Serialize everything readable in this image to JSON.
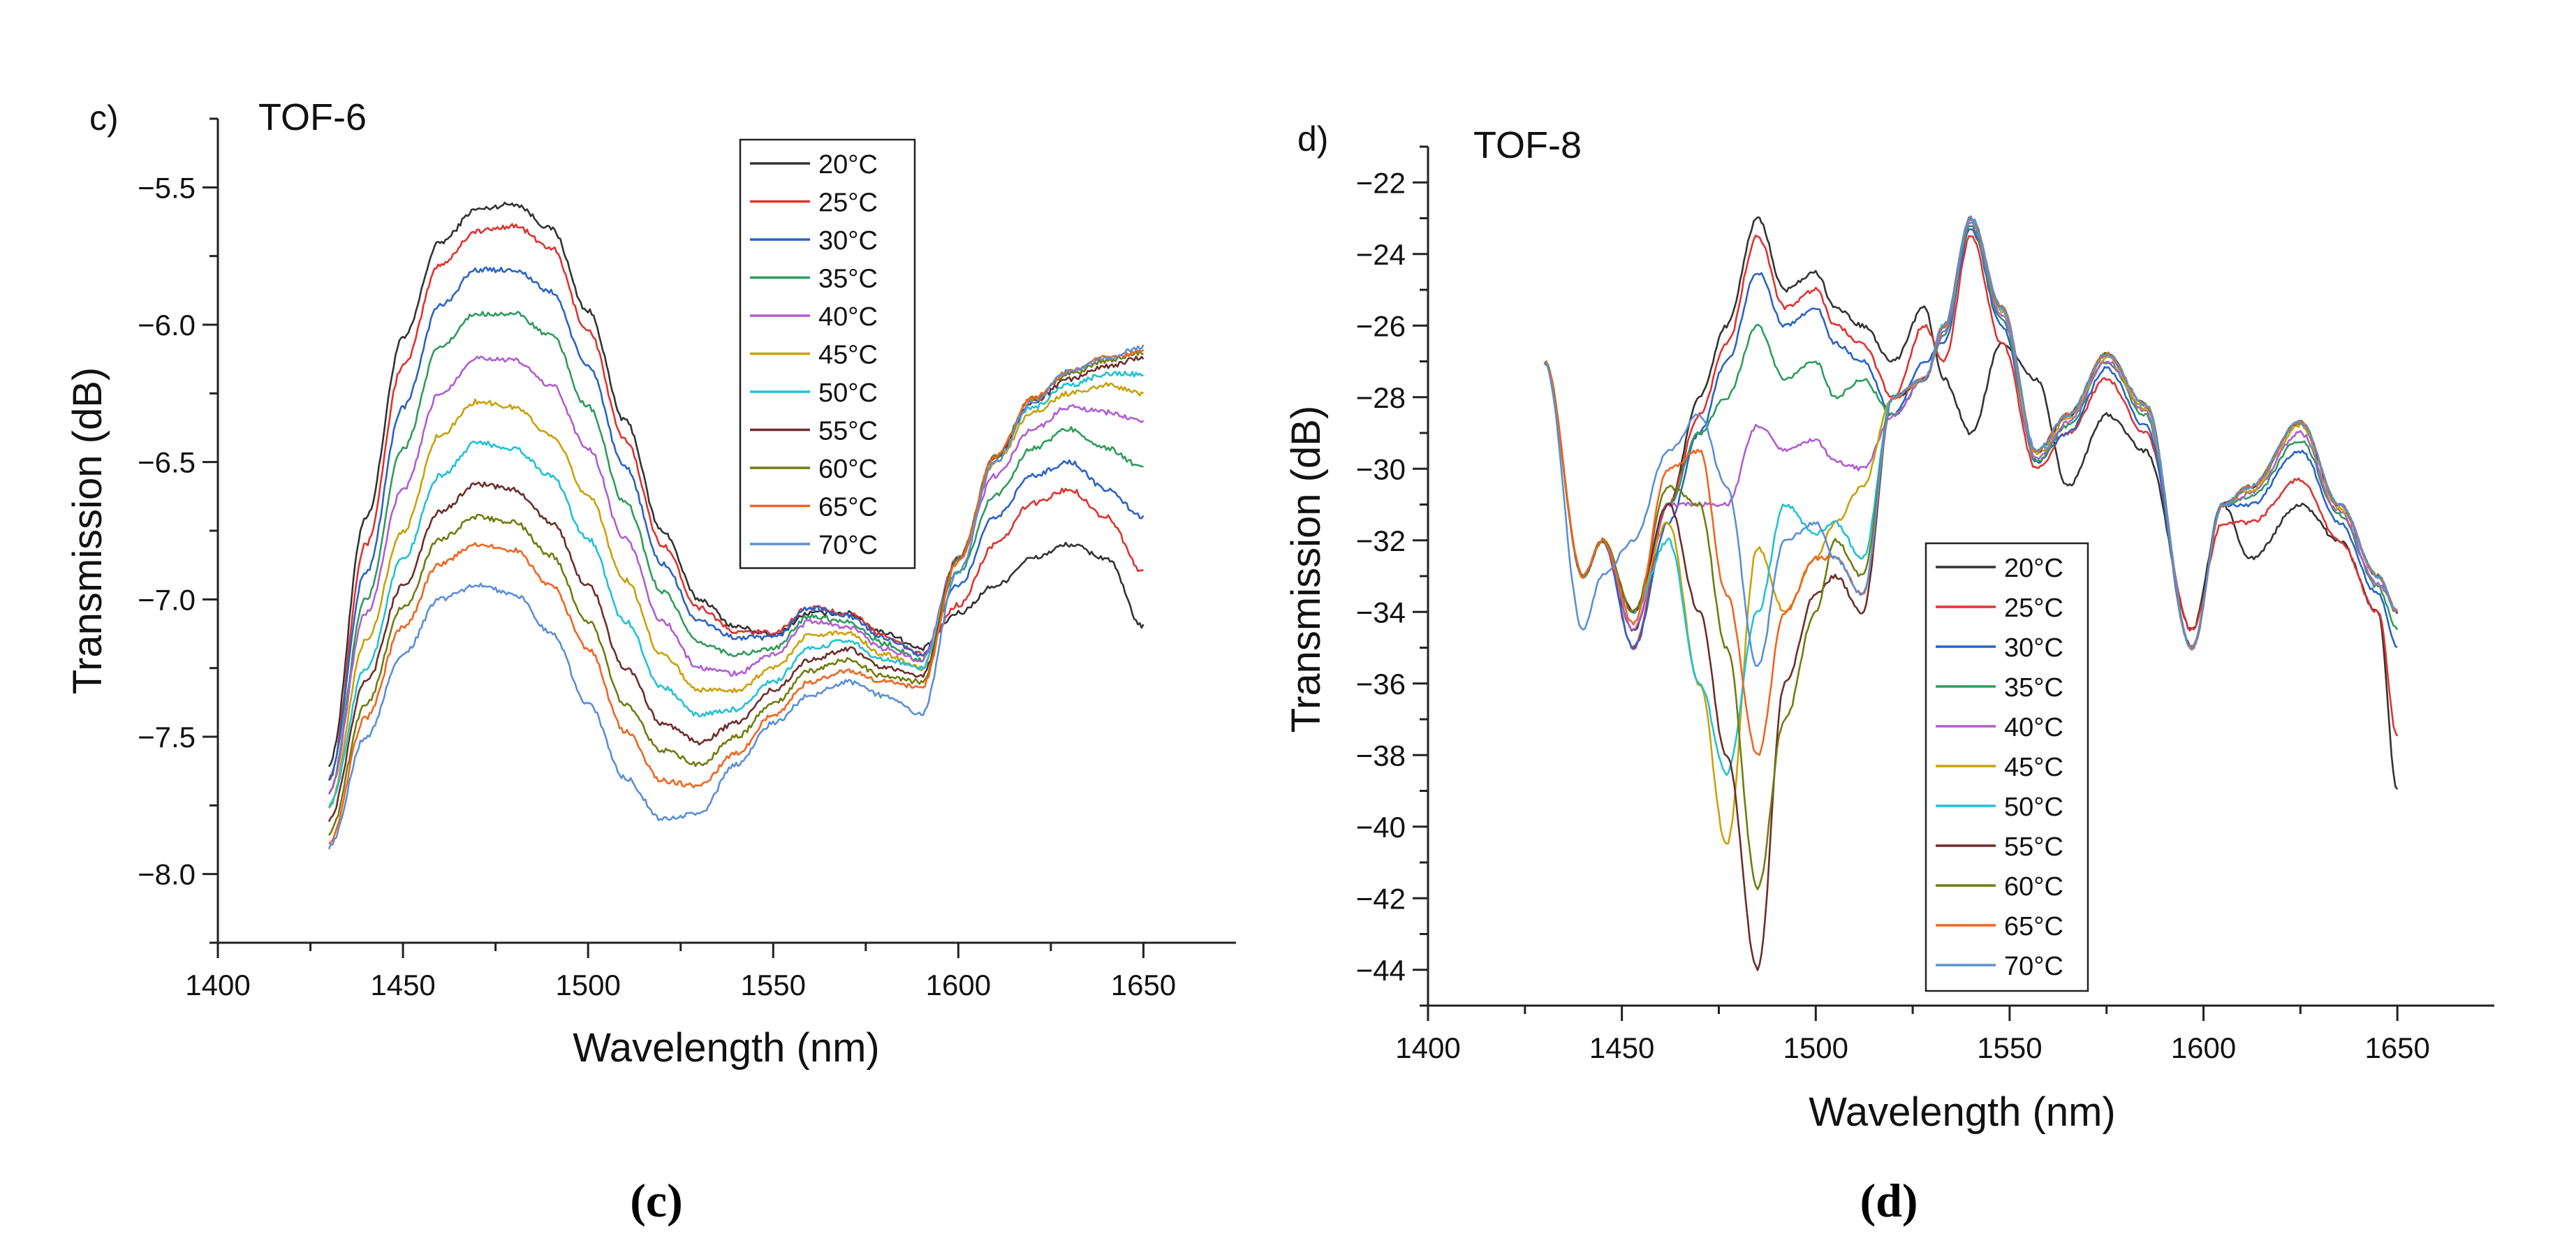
{
  "colors": [
    "#333333",
    "#e0332f",
    "#2a63c7",
    "#2e9c5b",
    "#b05ed0",
    "#c9a208",
    "#20c2d6",
    "#6e2d2a",
    "#6f7d10",
    "#f26420",
    "#5b8fd4"
  ],
  "chart_data": [
    {
      "type": "line",
      "panel_label": "c)",
      "title": "TOF-6",
      "caption": "(c)",
      "xlabel": "Wavelength (nm)",
      "ylabel": "Transmission (dB)",
      "xlim": [
        1400,
        1675
      ],
      "ylim": [
        -8.25,
        -5.25
      ],
      "xticks": [
        1400,
        1450,
        1500,
        1550,
        1600,
        1650
      ],
      "yticks": [
        -8.0,
        -7.5,
        -7.0,
        -6.5,
        -6.0,
        -5.5
      ],
      "ytick_labels": [
        "−8.0",
        "−7.5",
        "−7.0",
        "−6.5",
        "−6.0",
        "−5.5"
      ],
      "legend_position": "top-center",
      "x": [
        1430,
        1440,
        1450,
        1460,
        1470,
        1480,
        1490,
        1500,
        1510,
        1520,
        1530,
        1540,
        1550,
        1560,
        1570,
        1580,
        1590,
        1600,
        1610,
        1620,
        1630,
        1640,
        1650
      ],
      "series": [
        {
          "name": "20°C",
          "values": [
            -7.6,
            -6.7,
            -6.05,
            -5.7,
            -5.58,
            -5.56,
            -5.65,
            -5.95,
            -6.35,
            -6.75,
            -7.0,
            -7.1,
            -7.13,
            -7.05,
            -7.05,
            -7.12,
            -7.18,
            -7.05,
            -6.95,
            -6.85,
            -6.8,
            -6.85,
            -7.1
          ]
        },
        {
          "name": "25°C",
          "values": [
            -7.65,
            -6.8,
            -6.15,
            -5.78,
            -5.66,
            -5.64,
            -5.72,
            -6.02,
            -6.42,
            -6.8,
            -7.03,
            -7.12,
            -7.12,
            -7.03,
            -7.05,
            -7.13,
            -7.2,
            -7.02,
            -6.8,
            -6.65,
            -6.6,
            -6.7,
            -6.9
          ]
        },
        {
          "name": "30°C",
          "values": [
            -7.65,
            -6.9,
            -6.3,
            -5.93,
            -5.8,
            -5.8,
            -5.88,
            -6.15,
            -6.52,
            -6.87,
            -7.08,
            -7.14,
            -7.14,
            -7.03,
            -7.06,
            -7.14,
            -7.2,
            -6.95,
            -6.7,
            -6.55,
            -6.5,
            -6.6,
            -6.7
          ]
        },
        {
          "name": "35°C",
          "values": [
            -7.7,
            -7.0,
            -6.45,
            -6.08,
            -5.96,
            -5.96,
            -6.04,
            -6.3,
            -6.65,
            -6.97,
            -7.16,
            -7.2,
            -7.18,
            -7.06,
            -7.08,
            -7.16,
            -7.22,
            -6.9,
            -6.62,
            -6.45,
            -6.38,
            -6.45,
            -6.52
          ]
        },
        {
          "name": "40°C",
          "values": [
            -7.7,
            -7.05,
            -6.6,
            -6.25,
            -6.12,
            -6.13,
            -6.22,
            -6.45,
            -6.78,
            -7.08,
            -7.25,
            -7.27,
            -7.2,
            -7.08,
            -7.1,
            -7.18,
            -7.22,
            -6.85,
            -6.55,
            -6.38,
            -6.3,
            -6.32,
            -6.35
          ]
        },
        {
          "name": "45°C",
          "values": [
            -7.75,
            -7.15,
            -6.75,
            -6.4,
            -6.28,
            -6.3,
            -6.4,
            -6.62,
            -6.93,
            -7.2,
            -7.33,
            -7.33,
            -7.25,
            -7.13,
            -7.12,
            -7.2,
            -7.25,
            -6.85,
            -6.5,
            -6.32,
            -6.25,
            -6.22,
            -6.25
          ]
        },
        {
          "name": "50°C",
          "values": [
            -7.75,
            -7.25,
            -6.85,
            -6.55,
            -6.43,
            -6.45,
            -6.55,
            -6.78,
            -7.08,
            -7.32,
            -7.42,
            -7.4,
            -7.3,
            -7.18,
            -7.15,
            -7.22,
            -7.25,
            -6.85,
            -6.48,
            -6.3,
            -6.22,
            -6.18,
            -6.18
          ]
        },
        {
          "name": "55°C",
          "values": [
            -7.8,
            -7.3,
            -6.95,
            -6.68,
            -6.58,
            -6.6,
            -6.72,
            -6.95,
            -7.25,
            -7.45,
            -7.52,
            -7.45,
            -7.33,
            -7.22,
            -7.18,
            -7.25,
            -7.28,
            -6.85,
            -6.48,
            -6.28,
            -6.2,
            -6.15,
            -6.12
          ]
        },
        {
          "name": "60°C",
          "values": [
            -7.85,
            -7.38,
            -7.03,
            -6.78,
            -6.7,
            -6.72,
            -6.84,
            -7.08,
            -7.38,
            -7.55,
            -7.6,
            -7.5,
            -7.38,
            -7.26,
            -7.22,
            -7.28,
            -7.3,
            -6.85,
            -6.48,
            -6.27,
            -6.18,
            -6.13,
            -6.1
          ]
        },
        {
          "name": "65°C",
          "values": [
            -7.88,
            -7.43,
            -7.1,
            -6.87,
            -6.8,
            -6.82,
            -6.95,
            -7.18,
            -7.48,
            -7.66,
            -7.68,
            -7.56,
            -7.42,
            -7.3,
            -7.26,
            -7.3,
            -7.32,
            -6.86,
            -6.48,
            -6.27,
            -6.17,
            -6.12,
            -6.1
          ]
        },
        {
          "name": "70°C",
          "values": [
            -7.9,
            -7.5,
            -7.2,
            -7.0,
            -6.95,
            -6.98,
            -7.12,
            -7.38,
            -7.65,
            -7.8,
            -7.78,
            -7.6,
            -7.45,
            -7.35,
            -7.3,
            -7.35,
            -7.42,
            -6.9,
            -6.5,
            -6.28,
            -6.17,
            -6.12,
            -6.08
          ]
        }
      ]
    },
    {
      "type": "line",
      "panel_label": "d)",
      "title": "TOF-8",
      "caption": "(d)",
      "xlabel": "Wavelength (nm)",
      "ylabel": "Transmission (dB)",
      "xlim": [
        1400,
        1675
      ],
      "ylim": [
        -45,
        -21
      ],
      "xticks": [
        1400,
        1450,
        1500,
        1550,
        1600,
        1650
      ],
      "yticks": [
        -44,
        -42,
        -40,
        -38,
        -36,
        -34,
        -32,
        -30,
        -28,
        -26,
        -24,
        -22
      ],
      "ytick_labels": [
        "−44",
        "−42",
        "−40",
        "−38",
        "−36",
        "−34",
        "−32",
        "−30",
        "−28",
        "−26",
        "−24",
        "−22"
      ],
      "legend_position": "bottom-center",
      "x": [
        1430,
        1440,
        1445,
        1453,
        1462,
        1470,
        1477,
        1485,
        1492,
        1500,
        1505,
        1512,
        1520,
        1528,
        1533,
        1540,
        1548,
        1557,
        1565,
        1575,
        1585,
        1597,
        1605,
        1612,
        1625,
        1635,
        1645,
        1650
      ],
      "series": [
        {
          "name": "20°C",
          "values": [
            -27,
            -33,
            -32,
            -34.5,
            -31,
            -28,
            -26,
            -23,
            -25,
            -24.5,
            -25.5,
            -26,
            -27,
            -25.5,
            -27.5,
            -29,
            -26.5,
            -27.5,
            -30.5,
            -28.5,
            -29.5,
            -34.5,
            -31,
            -32.5,
            -31,
            -32,
            -34,
            -39
          ]
        },
        {
          "name": "25°C",
          "values": [
            -27,
            -33,
            -32,
            -35,
            -31,
            -28.5,
            -26.5,
            -23.5,
            -25.5,
            -25,
            -26,
            -26.5,
            -28,
            -26,
            -27,
            -23.5,
            -26.5,
            -30,
            -29,
            -27.5,
            -29,
            -34.5,
            -31.5,
            -31.5,
            -30.3,
            -32,
            -34,
            -37.5
          ]
        },
        {
          "name": "30°C",
          "values": [
            -27,
            -33,
            -32,
            -35,
            -31.5,
            -29,
            -27,
            -24.5,
            -26,
            -25.5,
            -26.5,
            -27,
            -28.5,
            -27,
            -26.5,
            -23.3,
            -26,
            -29.8,
            -29,
            -27.2,
            -28.8,
            -35,
            -31,
            -31,
            -29.5,
            -31.5,
            -33.5,
            -35
          ]
        },
        {
          "name": "35°C",
          "values": [
            -27,
            -33,
            -32,
            -34,
            -31,
            -29,
            -28,
            -26,
            -27.5,
            -27,
            -28,
            -27.5,
            -28.5,
            -27.5,
            -26.3,
            -23.2,
            -25.8,
            -29.8,
            -28.8,
            -27,
            -28.5,
            -35,
            -31,
            -30.8,
            -29.2,
            -31.3,
            -33.3,
            -34.5
          ]
        },
        {
          "name": "40°C",
          "values": [
            -27,
            -33,
            -32,
            -34.5,
            -31,
            -31,
            -31,
            -28.8,
            -29.5,
            -29.2,
            -29.8,
            -30,
            -28.5,
            -27.5,
            -26.2,
            -23.1,
            -25.7,
            -29.7,
            -28.7,
            -27,
            -28.4,
            -35,
            -31,
            -30.7,
            -29,
            -31.2,
            -33.2,
            -34
          ]
        },
        {
          "name": "45°C",
          "values": [
            -27,
            -33,
            -32,
            -34,
            -31.5,
            -36,
            -40.5,
            -32.2,
            -34,
            -32.5,
            -31.5,
            -30.5,
            -28,
            -27.5,
            -26.1,
            -23,
            -25.6,
            -29.6,
            -28.6,
            -26.9,
            -28.3,
            -35,
            -31,
            -30.6,
            -28.8,
            -31.1,
            -33,
            -34
          ]
        },
        {
          "name": "50°C",
          "values": [
            -27,
            -33,
            -32,
            -34,
            -32,
            -36,
            -38.5,
            -34,
            -31,
            -31.8,
            -31.5,
            -32.5,
            -28,
            -27.5,
            -26,
            -23,
            -25.5,
            -29.5,
            -28.5,
            -26.8,
            -28.2,
            -35,
            -31,
            -30.5,
            -28.7,
            -31,
            -33,
            -34
          ]
        },
        {
          "name": "55°C",
          "values": [
            -27,
            -33,
            -32,
            -34,
            -31,
            -34,
            -38,
            -44,
            -36,
            -33.5,
            -33,
            -34,
            -28,
            -27.5,
            -26,
            -23,
            -25.5,
            -29.5,
            -28.5,
            -26.8,
            -28.2,
            -35,
            -31,
            -30.5,
            -28.7,
            -31,
            -33,
            -34
          ]
        },
        {
          "name": "60°C",
          "values": [
            -27,
            -33,
            -32,
            -34,
            -30.5,
            -31,
            -35,
            -41.7,
            -37,
            -34,
            -32,
            -33,
            -28,
            -27.5,
            -26,
            -23,
            -25.5,
            -29.5,
            -28.5,
            -26.8,
            -28.2,
            -35,
            -31,
            -30.5,
            -28.7,
            -31,
            -33,
            -34
          ]
        },
        {
          "name": "65°C",
          "values": [
            -27,
            -33,
            -32,
            -34.3,
            -30,
            -29.5,
            -33.5,
            -38,
            -34,
            -32.5,
            -32.5,
            -33.5,
            -28,
            -27.5,
            -26,
            -23,
            -25.5,
            -29.5,
            -28.5,
            -26.8,
            -28.2,
            -35,
            -31,
            -30.5,
            -28.7,
            -31,
            -33,
            -34
          ]
        },
        {
          "name": "70°C",
          "values": [
            -27,
            -34.5,
            -33,
            -32,
            -29.5,
            -28.5,
            -30.5,
            -35.5,
            -32,
            -31.5,
            -32.5,
            -33.5,
            -28,
            -27.5,
            -26,
            -23,
            -25.5,
            -29.5,
            -28.5,
            -26.8,
            -28.2,
            -35,
            -31,
            -30.5,
            -28.7,
            -31,
            -33,
            -34
          ]
        }
      ]
    }
  ]
}
